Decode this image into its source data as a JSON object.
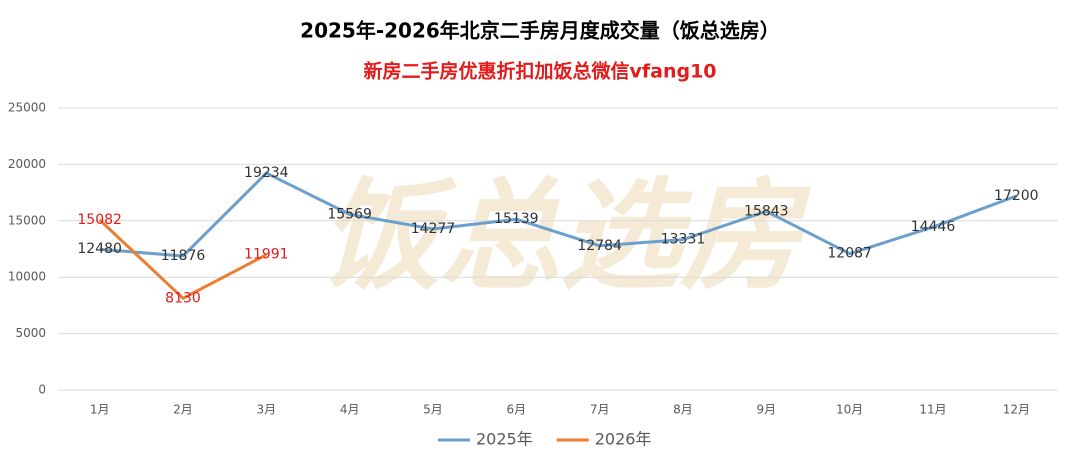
{
  "chart_data": {
    "type": "line",
    "title": "2025年-2026年北京二手房月度成交量（饭总选房）",
    "subtitle": "新房二手房优惠折扣加饭总微信vfang10",
    "watermark": "饭总选房",
    "categories": [
      "1月",
      "2月",
      "3月",
      "4月",
      "5月",
      "6月",
      "7月",
      "8月",
      "9月",
      "10月",
      "11月",
      "12月"
    ],
    "series": [
      {
        "name": "2025年",
        "color": "#6b9fcd",
        "label_color": "#333333",
        "values": [
          12480,
          11876,
          19234,
          15569,
          14277,
          15139,
          12784,
          13331,
          15843,
          12087,
          14446,
          17200
        ]
      },
      {
        "name": "2026年",
        "color": "#ed7d31",
        "label_color": "#e31b1b",
        "values": [
          15082,
          8130,
          11991,
          null,
          null,
          null,
          null,
          null,
          null,
          null,
          null,
          null
        ]
      }
    ],
    "ylim": [
      0,
      25000
    ],
    "yticks": [
      0,
      5000,
      10000,
      15000,
      20000,
      25000
    ],
    "grid": true,
    "legend": "bottom"
  }
}
